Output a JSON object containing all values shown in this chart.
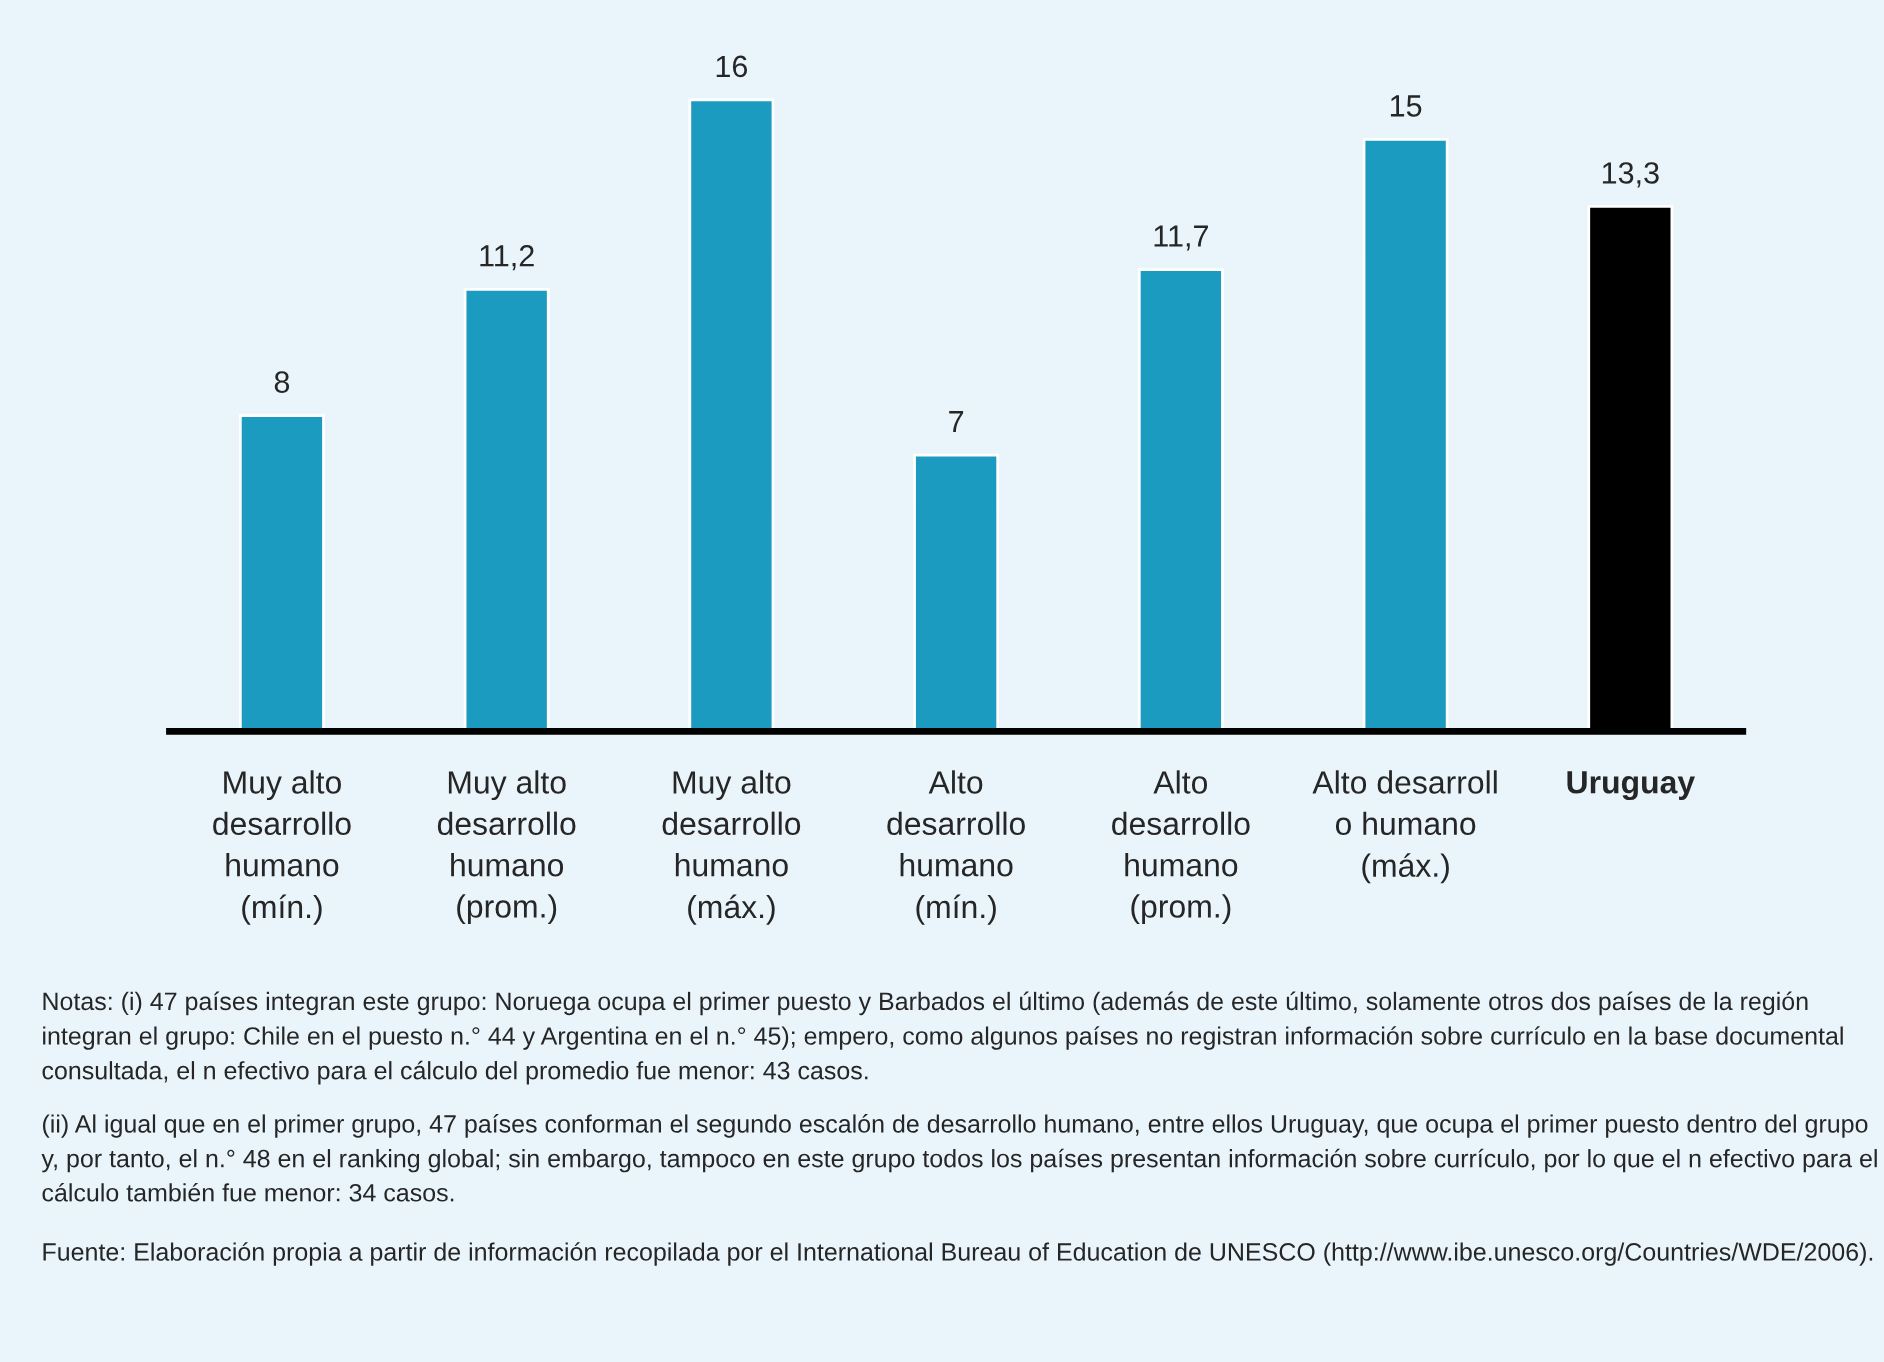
{
  "chart_data": {
    "type": "bar",
    "categories": [
      "Muy alto\ndesarrollo\nhumano\n(mín.)",
      "Muy alto\ndesarrollo\nhumano\n(prom.)",
      "Muy alto\ndesarrollo\nhumano\n(máx.)",
      "Alto\ndesarrollo\nhumano\n(mín.)",
      "Alto\ndesarrollo\nhumano\n(prom.)",
      "Alto desarroll\no humano\n(máx.)",
      "Uruguay"
    ],
    "values": [
      8,
      11.2,
      16,
      7,
      11.7,
      15,
      13.3
    ],
    "value_labels": [
      "8",
      "11,2",
      "16",
      "7",
      "11,7",
      "15",
      "13,3"
    ],
    "colors": [
      "#1a9bbf",
      "#1a9bbf",
      "#1a9bbf",
      "#1a9bbf",
      "#1a9bbf",
      "#1a9bbf",
      "#000000"
    ],
    "grid": false,
    "annotations": [
      "Notas: (i) 47 países integran este grupo: Noruega ocupa el primer puesto y Barbados el último (además de este último, solamente otros dos países de la región integran el grupo: Chile en el puesto n.° 44 y Argentina en el n.° 45); empero, como algunos países no registran información sobre currículo en la base documental consultada, el n efectivo para el cálculo del promedio fue menor: 43 casos.",
      "(ii) Al igual que en el primer grupo, 47 países conforman el segundo escalón de desarrollo humano, entre ellos Uruguay, que ocupa el primer puesto dentro del grupo y, por tanto, el n.° 48 en el ranking global; sin embargo, tampoco en este grupo todos los países presentan información sobre currículo, por lo que el n efectivo para el cálculo también fue menor: 34 casos.",
      "Fuente: Elaboración propia a partir de información recopilada por el International Bureau of Education de UNESCO (http://www.ibe.unesco.org/Countries/WDE/2006)."
    ]
  }
}
